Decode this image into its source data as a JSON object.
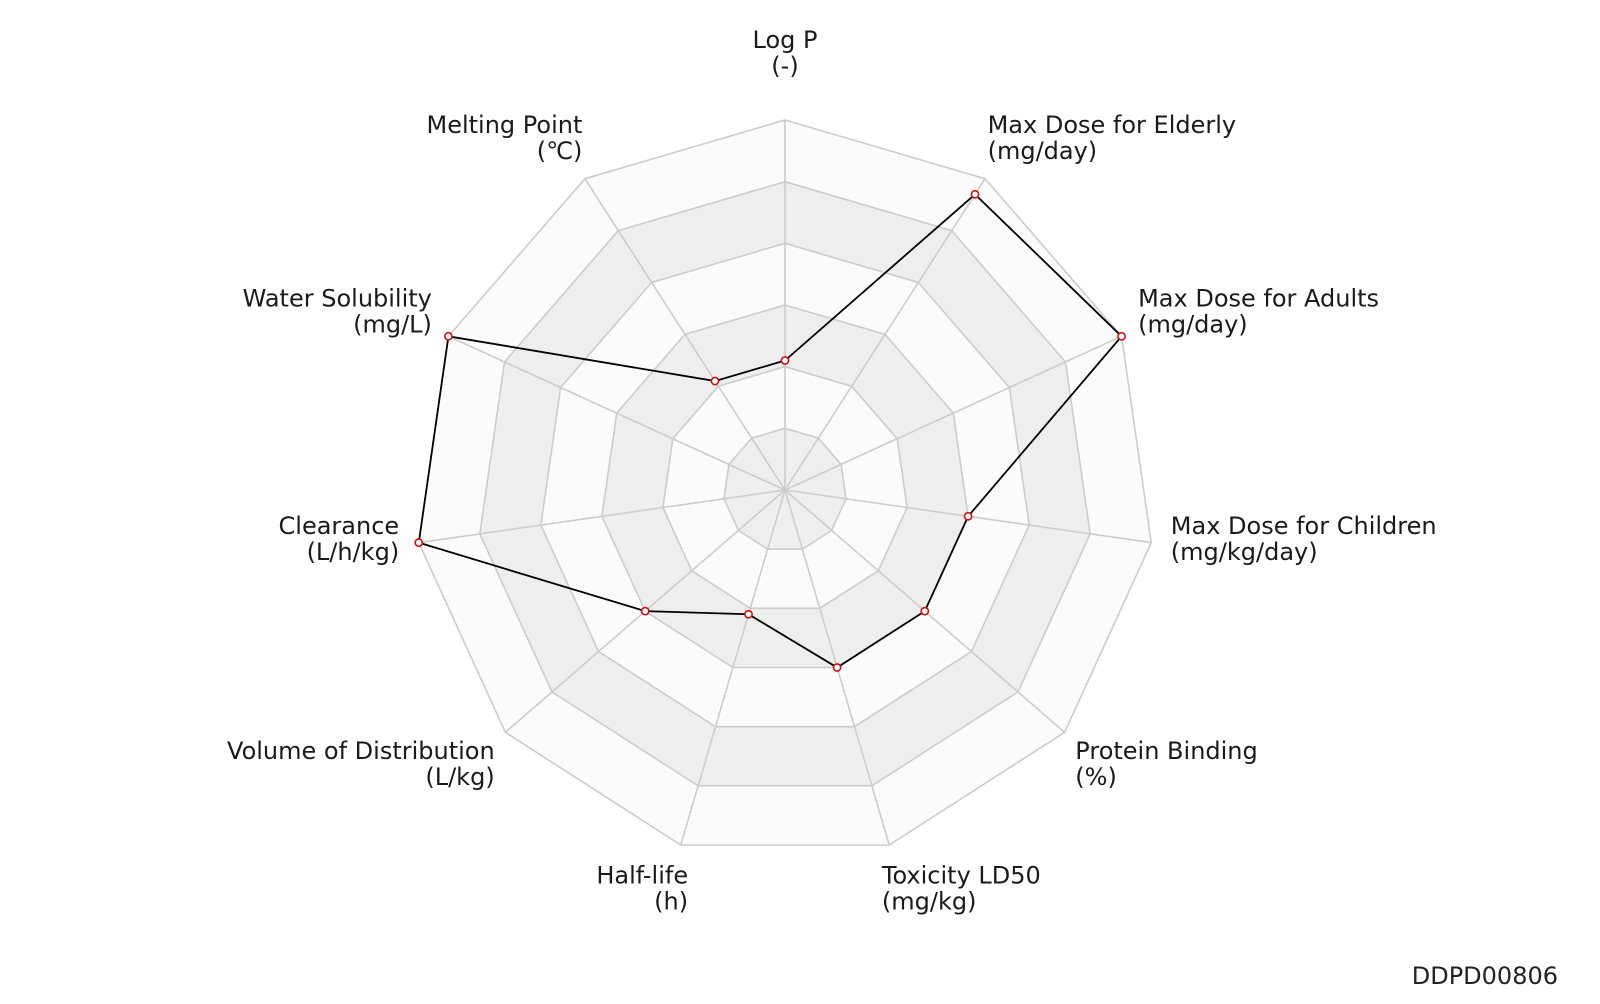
{
  "footer": {
    "code": "DDPD00806"
  },
  "chart_data": {
    "type": "radar",
    "levels": 6,
    "rmax": 1,
    "axes": [
      {
        "name": "Log P",
        "unit": "(-)"
      },
      {
        "name": "Max Dose for Elderly",
        "unit": "(mg/day)"
      },
      {
        "name": "Max Dose for Adults",
        "unit": "(mg/day)"
      },
      {
        "name": "Max Dose for Children",
        "unit": "(mg/kg/day)"
      },
      {
        "name": "Protein Binding",
        "unit": "(%)"
      },
      {
        "name": "Toxicity LD50",
        "unit": "(mg/kg)"
      },
      {
        "name": "Half-life",
        "unit": "(h)"
      },
      {
        "name": "Volume of Distribution",
        "unit": "(L/kg)"
      },
      {
        "name": "Clearance",
        "unit": "(L/h/kg)"
      },
      {
        "name": "Water Solubility",
        "unit": "(mg/L)"
      },
      {
        "name": "Melting Point",
        "unit": "(℃)"
      }
    ],
    "series": [
      {
        "values": [
          0.35,
          0.95,
          1.0,
          0.5,
          0.5,
          0.5,
          0.35,
          0.5,
          1.0,
          1.0,
          0.35
        ]
      }
    ],
    "colors": {
      "line": "#000000",
      "marker_edge": "#cc1111",
      "band_light": "#fbfbfb",
      "band_dark": "#eeeeee",
      "grid": "#cccccc"
    }
  }
}
